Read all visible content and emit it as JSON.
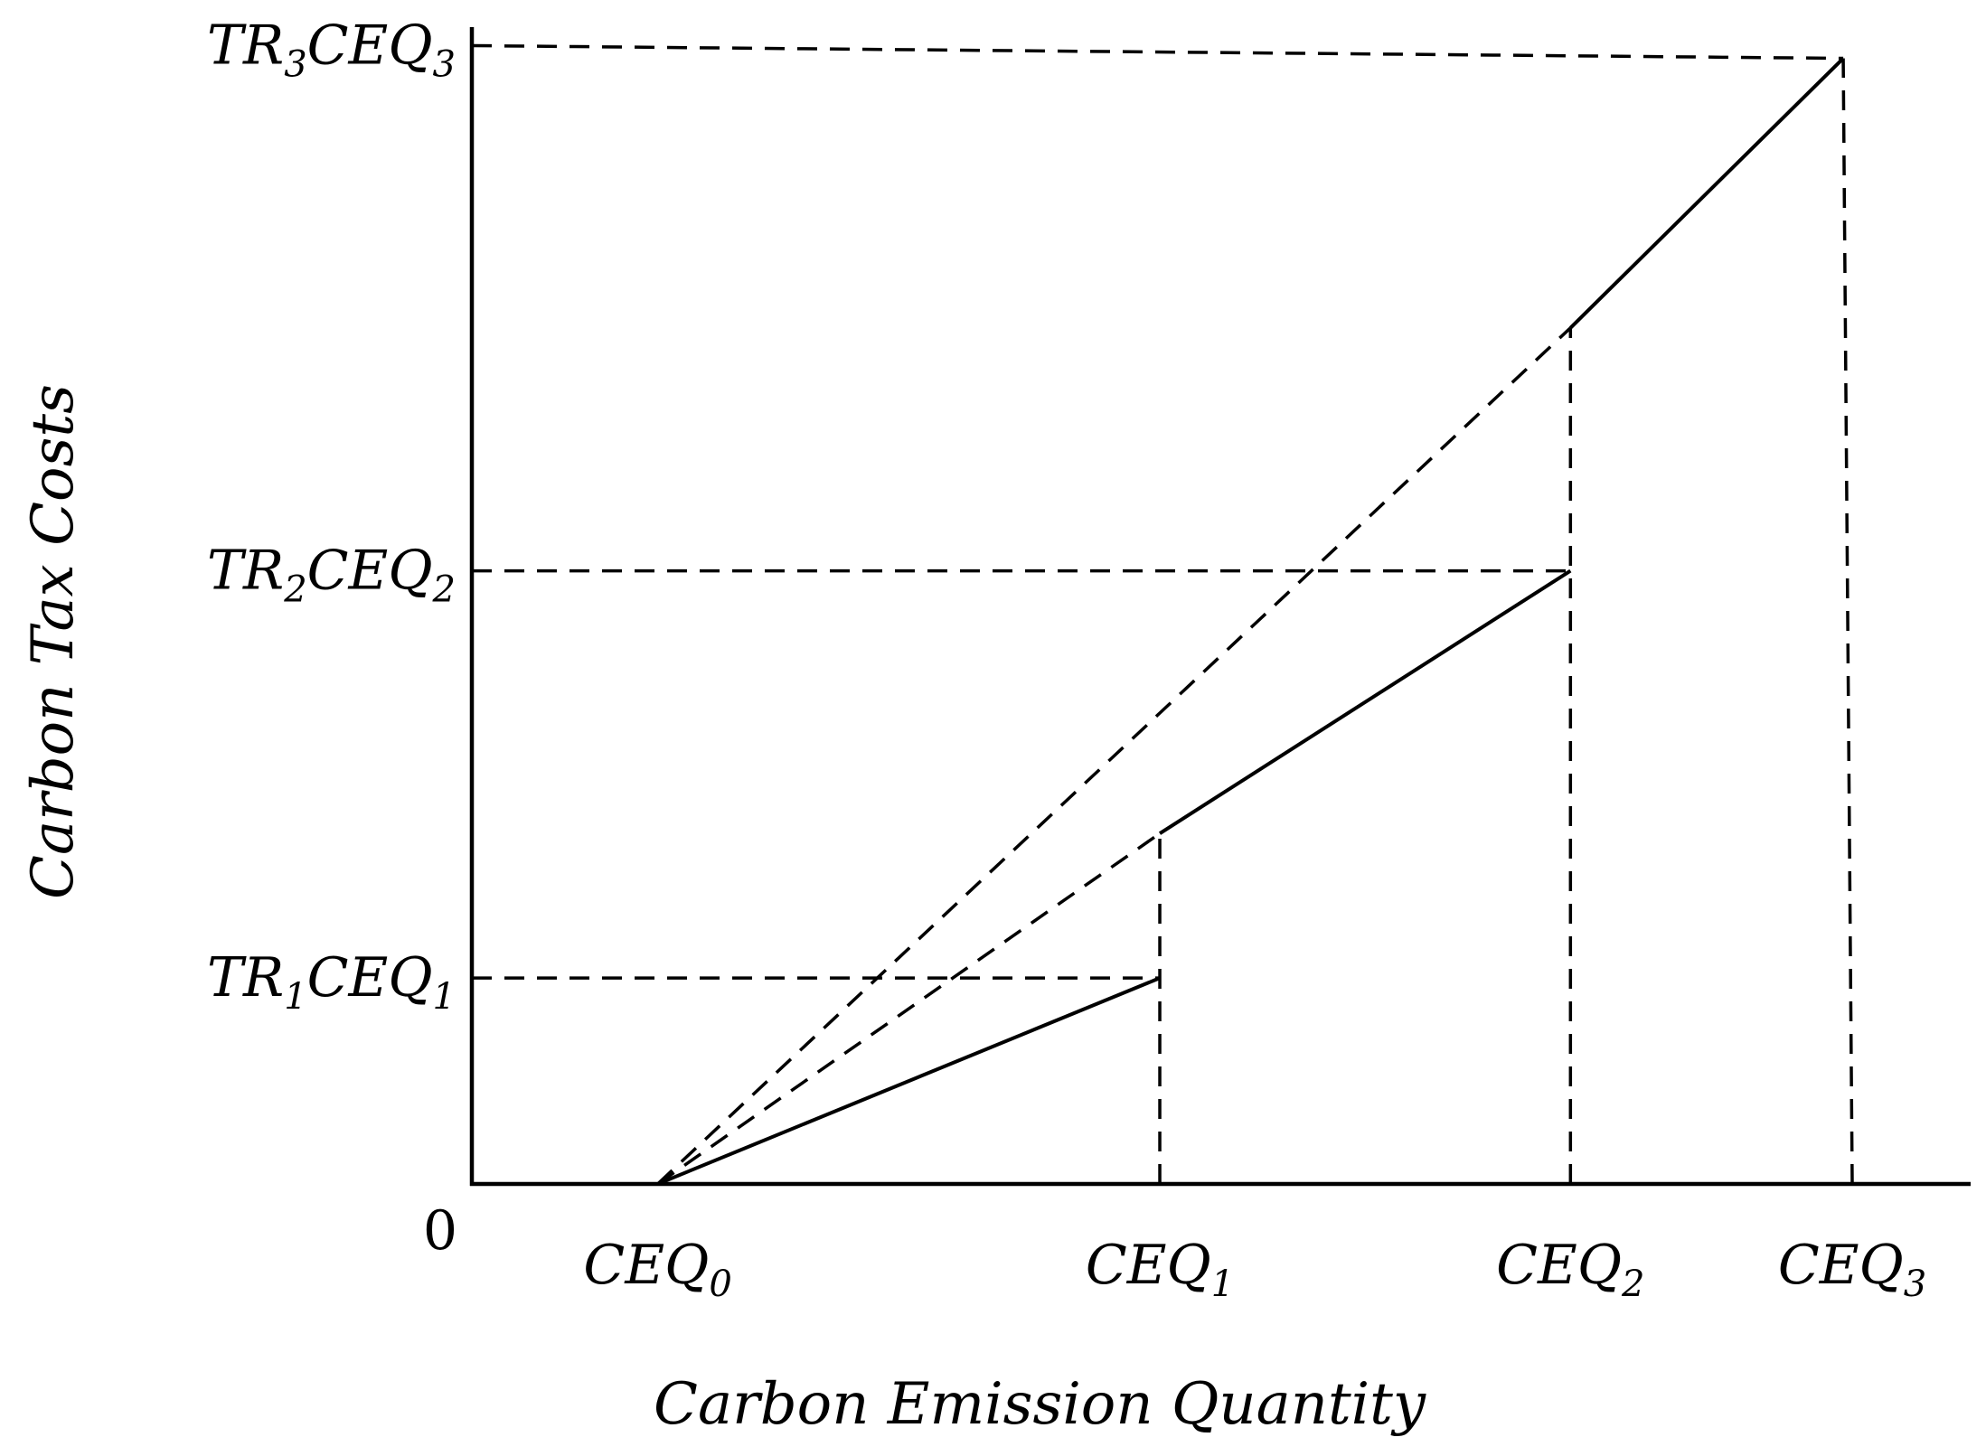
{
  "chart_data": {
    "type": "line",
    "title": "",
    "xlabel": "Carbon Emission Quantity",
    "ylabel": "Carbon Tax Costs",
    "origin_label": "0",
    "xlim": [
      0,
      100
    ],
    "ylim": [
      0,
      100
    ],
    "x_ticks": [
      {
        "id": "ceq0",
        "base": "CEQ",
        "sub": "0",
        "value": 12.4
      },
      {
        "id": "ceq1",
        "base": "CEQ",
        "sub": "1",
        "value": 45.9
      },
      {
        "id": "ceq2",
        "base": "CEQ",
        "sub": "2",
        "value": 73.3
      },
      {
        "id": "ceq3",
        "base": "CEQ",
        "sub": "3",
        "value": 92.1
      }
    ],
    "y_ticks": [
      {
        "id": "tr1",
        "parts": [
          "TR",
          "1",
          "CEQ",
          "1"
        ],
        "value": 17.8
      },
      {
        "id": "tr2",
        "parts": [
          "TR",
          "2",
          "CEQ",
          "2"
        ],
        "value": 53.0
      },
      {
        "id": "tr3",
        "parts": [
          "TR",
          "3",
          "CEQ",
          "3"
        ],
        "value": 98.4
      }
    ],
    "solid_segments": [
      {
        "x": [
          12.4,
          45.9
        ],
        "y": [
          0,
          17.8
        ]
      },
      {
        "x": [
          45.9,
          73.3
        ],
        "y": [
          30.3,
          53.0
        ]
      },
      {
        "x": [
          73.3,
          91.5
        ],
        "y": [
          74.0,
          97.3
        ]
      }
    ],
    "dashed_lines": [
      {
        "id": "rate2-extension",
        "x": [
          12.4,
          45.9
        ],
        "y": [
          0,
          30.3
        ]
      },
      {
        "id": "rate3-extension",
        "x": [
          12.4,
          73.3
        ],
        "y": [
          0,
          74.0
        ]
      },
      {
        "id": "ref-h-tr1",
        "x": [
          0,
          45.9
        ],
        "y": [
          17.8,
          17.8
        ]
      },
      {
        "id": "ref-h-tr2",
        "x": [
          0,
          73.3
        ],
        "y": [
          53.0,
          53.0
        ]
      },
      {
        "id": "ref-h-tr3",
        "x": [
          0,
          91.5
        ],
        "y": [
          98.4,
          97.3
        ]
      },
      {
        "id": "ref-v-ceq1",
        "x": [
          45.9,
          45.9
        ],
        "y": [
          0,
          30.3
        ]
      },
      {
        "id": "ref-v-ceq2",
        "x": [
          73.3,
          73.3
        ],
        "y": [
          0,
          74.0
        ]
      },
      {
        "id": "ref-v-ceq3",
        "x": [
          92.1,
          91.5
        ],
        "y": [
          0,
          97.3
        ]
      }
    ],
    "grid": false,
    "legend": "none"
  }
}
